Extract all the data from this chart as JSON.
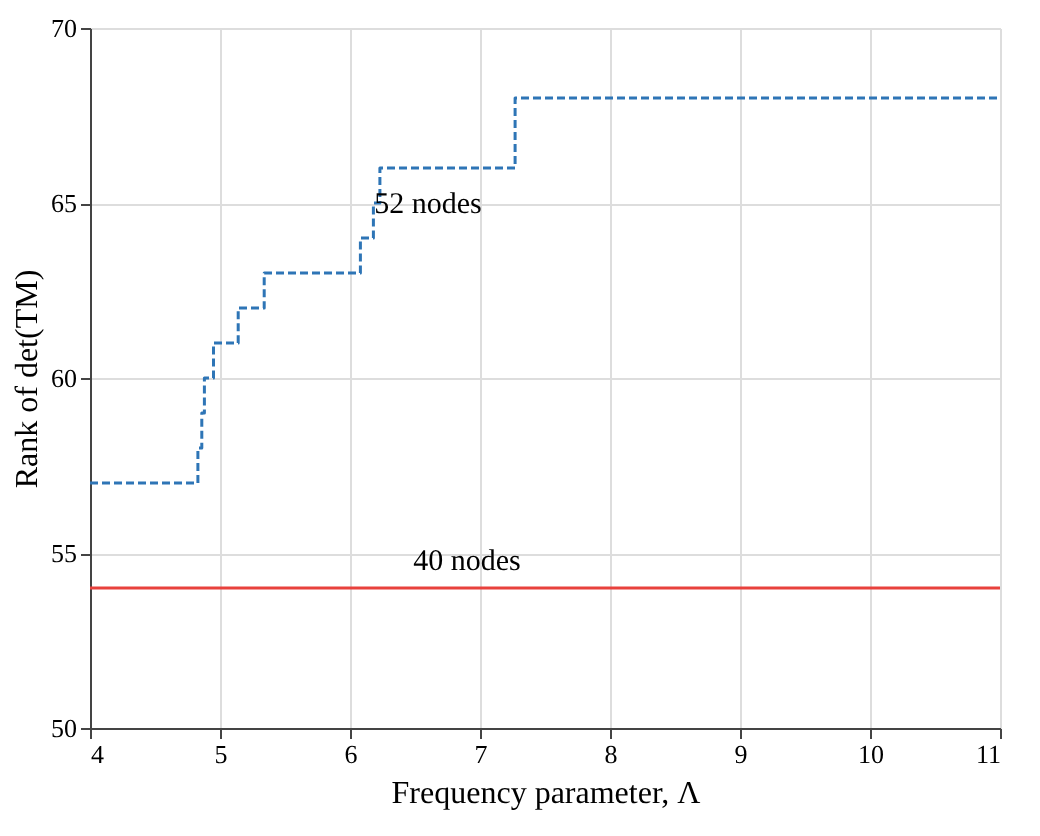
{
  "chart_data": {
    "type": "step",
    "xlabel": "Frequency parameter, Λ",
    "ylabel": "Rank of  det(TM)",
    "xlim": [
      4,
      11
    ],
    "ylim": [
      50,
      70
    ],
    "xticks": [
      4,
      5,
      6,
      7,
      8,
      9,
      10,
      11
    ],
    "yticks": [
      50,
      55,
      60,
      65,
      70
    ],
    "grid": true,
    "series": [
      {
        "color": "#2e75b6",
        "line_style": "dashed",
        "x": [
          4,
          4.83,
          4.86,
          4.88,
          4.95,
          5.14,
          5.34,
          6.08,
          6.18,
          6.23,
          7.27,
          11
        ],
        "values": [
          57,
          58,
          59,
          60,
          61,
          62,
          63,
          64,
          65,
          66,
          68,
          68
        ]
      },
      {
        "type": "line",
        "color": "#e8413c",
        "line_style": "solid",
        "x": [
          4,
          11
        ],
        "values": [
          54,
          54
        ]
      }
    ],
    "annotations": [
      "52 nodes",
      "40 nodes"
    ]
  }
}
